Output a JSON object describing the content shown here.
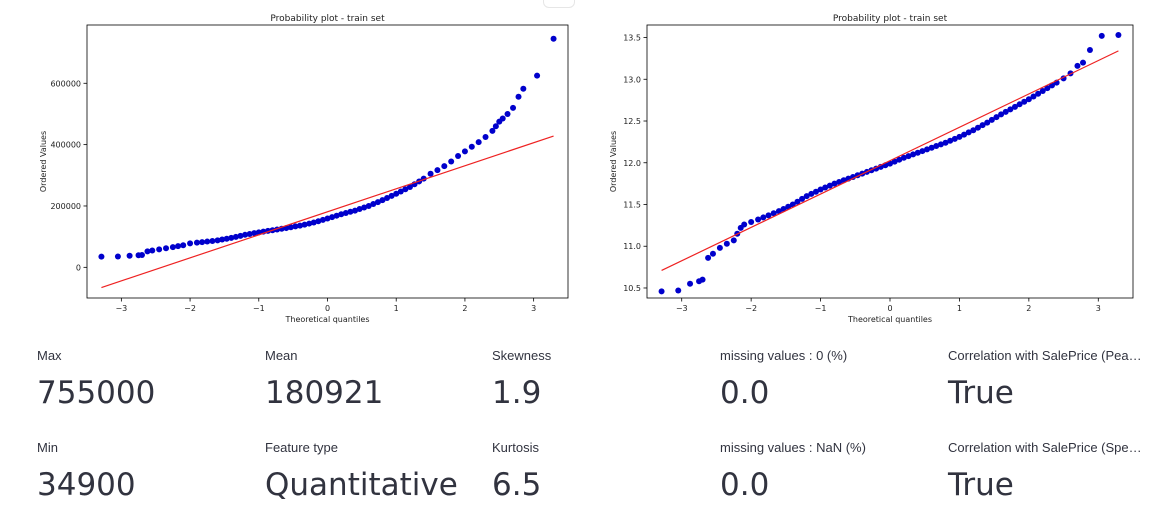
{
  "chart_data": [
    {
      "type": "scatter",
      "title": "Probability plot - train set",
      "xlabel": "Theoretical quantiles",
      "ylabel": "Ordered Values",
      "xlim": [
        -3.5,
        3.5
      ],
      "ylim": [
        -100000,
        790000
      ],
      "xticks": [
        -3,
        -2,
        -1,
        0,
        1,
        2,
        3
      ],
      "yticks": [
        0,
        200000,
        400000,
        600000
      ],
      "grid": false,
      "series": [
        {
          "x": [
            -3.29,
            -3.05,
            -2.88,
            -2.75,
            -2.7,
            -2.62,
            -2.55,
            -2.45,
            -2.35,
            -2.25,
            -2.1,
            -2.0,
            -1.9,
            -1.75,
            -1.6,
            -1.4,
            -1.2,
            -1.0,
            -0.8,
            -0.6,
            -0.4,
            -0.2,
            0.0,
            0.2,
            0.4,
            0.6,
            0.8,
            1.0,
            1.2,
            1.4,
            1.5,
            1.6,
            1.7,
            1.8,
            1.9,
            2.0,
            2.1,
            2.2,
            2.3,
            2.4,
            2.45,
            2.5,
            2.55,
            2.62,
            2.7,
            2.78,
            2.85,
            3.05,
            3.29
          ],
          "y": [
            34900,
            35300,
            37900,
            39300,
            40000,
            52000,
            55000,
            58500,
            62000,
            66000,
            72000,
            78000,
            80500,
            84000,
            88000,
            96000,
            106000,
            114000,
            121000,
            128000,
            136000,
            146000,
            159000,
            173000,
            185000,
            200000,
            219000,
            240000,
            262000,
            289000,
            305000,
            317000,
            330000,
            345000,
            363000,
            378000,
            393000,
            408000,
            425000,
            445000,
            460000,
            475000,
            485000,
            500000,
            520000,
            556000,
            582000,
            625000,
            745000
          ]
        }
      ],
      "fit_line": {
        "x": [
          -3.29,
          3.29
        ],
        "y": [
          -66000,
          428000
        ]
      }
    },
    {
      "type": "scatter",
      "title": "Probability plot - train set",
      "xlabel": "Theoretical quantiles",
      "ylabel": "Ordered Values",
      "xlim": [
        -3.5,
        3.5
      ],
      "ylim": [
        10.38,
        13.65
      ],
      "xticks": [
        -3,
        -2,
        -1,
        0,
        1,
        2,
        3
      ],
      "yticks": [
        10.5,
        11.0,
        11.5,
        12.0,
        12.5,
        13.0,
        13.5
      ],
      "grid": false,
      "series": [
        {
          "x": [
            -3.29,
            -3.05,
            -2.88,
            -2.75,
            -2.7,
            -2.62,
            -2.55,
            -2.45,
            -2.35,
            -2.25,
            -2.2,
            -2.15,
            -2.1,
            -2.0,
            -1.9,
            -1.75,
            -1.6,
            -1.4,
            -1.2,
            -1.0,
            -0.8,
            -0.6,
            -0.4,
            -0.2,
            0.0,
            0.2,
            0.4,
            0.6,
            0.8,
            1.0,
            1.2,
            1.4,
            1.6,
            1.8,
            2.0,
            2.2,
            2.4,
            2.5,
            2.6,
            2.7,
            2.78,
            2.88,
            3.05,
            3.29
          ],
          "y": [
            10.46,
            10.47,
            10.55,
            10.58,
            10.6,
            10.86,
            10.91,
            10.98,
            11.03,
            11.07,
            11.15,
            11.22,
            11.26,
            11.29,
            11.32,
            11.37,
            11.42,
            11.5,
            11.6,
            11.68,
            11.75,
            11.81,
            11.87,
            11.93,
            11.99,
            12.06,
            12.12,
            12.18,
            12.24,
            12.31,
            12.39,
            12.48,
            12.58,
            12.67,
            12.76,
            12.86,
            12.96,
            13.01,
            13.07,
            13.16,
            13.2,
            13.35,
            13.52,
            13.53
          ]
        }
      ],
      "fit_line": {
        "x": [
          -3.29,
          3.29
        ],
        "y": [
          10.71,
          13.34
        ]
      }
    }
  ],
  "colors": {
    "points": "#0000cc",
    "fit_line": "#ee2222",
    "text": "#31333f"
  },
  "metrics": [
    {
      "label": "Max",
      "value": "755000"
    },
    {
      "label": "Mean",
      "value": "180921"
    },
    {
      "label": "Skewness",
      "value": "1.9"
    },
    {
      "label": "missing values : 0 (%)",
      "value": "0.0"
    },
    {
      "label": "Correlation with SalePrice (Pea…",
      "value": "True"
    },
    {
      "label": "Min",
      "value": "34900"
    },
    {
      "label": "Feature type",
      "value": "Quantitative"
    },
    {
      "label": "Kurtosis",
      "value": "6.5"
    },
    {
      "label": "missing values : NaN (%)",
      "value": "0.0"
    },
    {
      "label": "Correlation with SalePrice (Spe…",
      "value": "True"
    }
  ]
}
